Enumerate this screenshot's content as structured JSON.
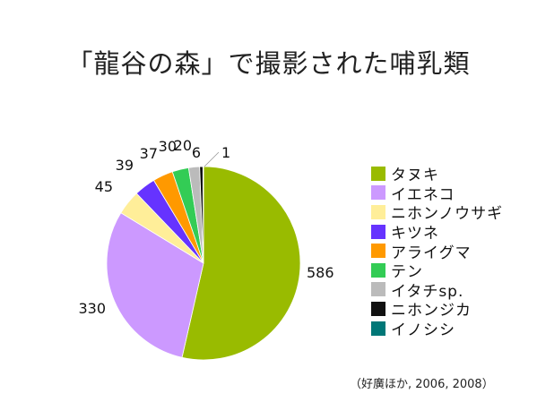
{
  "chart_data": {
    "type": "pie",
    "title": "「龍谷の森」で撮影された哺乳類",
    "categories": [
      "タヌキ",
      "イエネコ",
      "ニホンノウサギ",
      "キツネ",
      "アライグマ",
      "テン",
      "イタチsp.",
      "ニホンジカ",
      "イノシシ"
    ],
    "values": [
      586,
      330,
      45,
      39,
      37,
      30,
      20,
      6,
      1
    ],
    "colors": [
      "#99bb00",
      "#cc99ff",
      "#ffee99",
      "#6633ff",
      "#ff9900",
      "#33cc55",
      "#bbbbbb",
      "#111111",
      "#007777"
    ],
    "legend_position": "right"
  },
  "source": "（好廣ほか, 2006, 2008）"
}
